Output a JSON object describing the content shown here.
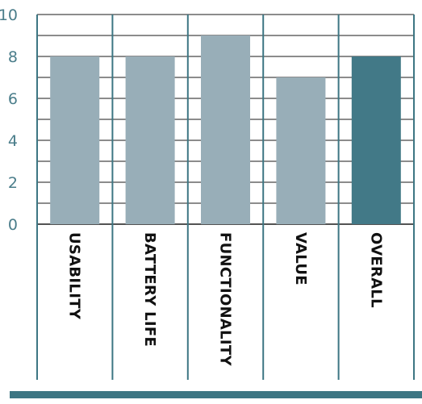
{
  "chart_data": {
    "type": "bar",
    "title": "",
    "xlabel": "",
    "ylabel": "",
    "categories": [
      "USABILITY",
      "BATTERY LIFE",
      "FUNCTIONALITY",
      "VALUE",
      "OVERALL"
    ],
    "values": [
      8,
      8,
      9,
      7,
      8
    ],
    "ylim": [
      0,
      10
    ],
    "yticks": [
      0,
      2,
      4,
      6,
      8,
      10
    ],
    "grid": true,
    "highlight_category": "OVERALL",
    "colors": {
      "bar": "#98aeb8",
      "bar_highlight": "#427987",
      "axis_divider": "#3d7683",
      "gridline": "#1a1a1a",
      "tick_label": "#4a7d8a",
      "footer_band": "#3d7683"
    }
  }
}
